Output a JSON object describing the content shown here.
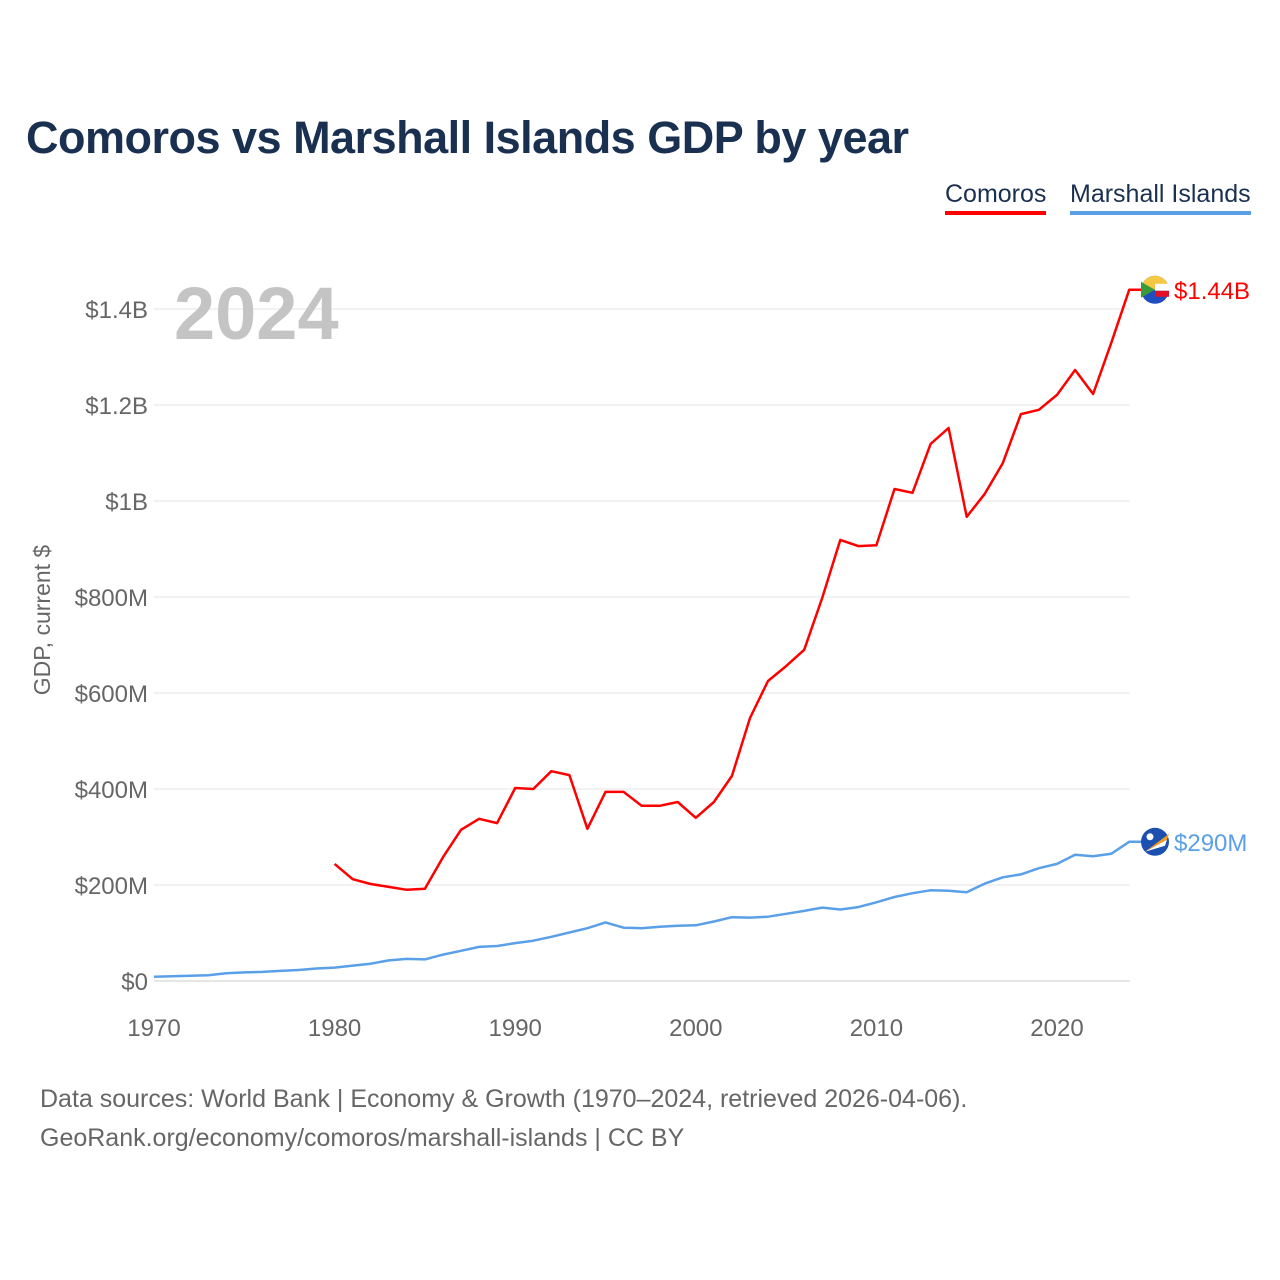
{
  "title": "Comoros vs Marshall Islands GDP by year",
  "legend": [
    "Comoros",
    "Marshall Islands"
  ],
  "footer": {
    "line1": "Data sources: World Bank | Economy & Growth (1970–2024, retrieved 2026-04-06).",
    "line2": "GeoRank.org/economy/comoros/marshall-islands | CC BY"
  },
  "chart_data": {
    "type": "line",
    "title": "Comoros vs Marshall Islands GDP by year",
    "year_label": "2024",
    "xlabel": "",
    "ylabel": "GDP, current $",
    "xlim": [
      1970,
      2024
    ],
    "ylim": [
      0,
      1500
    ],
    "units": "million USD",
    "grid": true,
    "legend_position": "top-right",
    "x_ticks": [
      1970,
      1980,
      1990,
      2000,
      2010,
      2020
    ],
    "y_ticks": [
      0,
      200,
      400,
      600,
      800,
      1000,
      1200,
      1400
    ],
    "y_tick_labels": [
      "$0",
      "$200M",
      "$400M",
      "$600M",
      "$800M",
      "$1B",
      "$1.2B",
      "$1.4B"
    ],
    "series": [
      {
        "name": "Comoros",
        "color": "#ff0000",
        "end_label": "$1.44B",
        "x": [
          1980,
          1981,
          1982,
          1983,
          1984,
          1985,
          1986,
          1987,
          1988,
          1989,
          1990,
          1991,
          1992,
          1993,
          1994,
          1995,
          1996,
          1997,
          1998,
          1999,
          2000,
          2001,
          2002,
          2003,
          2004,
          2005,
          2006,
          2007,
          2008,
          2009,
          2010,
          2011,
          2012,
          2013,
          2014,
          2015,
          2016,
          2017,
          2018,
          2019,
          2020,
          2021,
          2022,
          2023,
          2024
        ],
        "values": [
          244,
          212,
          202,
          196,
          190,
          192,
          258,
          315,
          338,
          329,
          402,
          400,
          437,
          429,
          317,
          394,
          394,
          365,
          365,
          373,
          340,
          373,
          427,
          548,
          625,
          656,
          690,
          798,
          919,
          906,
          908,
          1025,
          1017,
          1119,
          1152,
          967,
          1015,
          1079,
          1181,
          1190,
          1221,
          1273,
          1223,
          1329,
          1440
        ]
      },
      {
        "name": "Marshall Islands",
        "color": "#5aa0e8",
        "end_label": "$290M",
        "x": [
          1970,
          1971,
          1972,
          1973,
          1974,
          1975,
          1976,
          1977,
          1978,
          1979,
          1980,
          1981,
          1982,
          1983,
          1984,
          1985,
          1986,
          1987,
          1988,
          1989,
          1990,
          1991,
          1992,
          1993,
          1994,
          1995,
          1996,
          1997,
          1998,
          1999,
          2000,
          2001,
          2002,
          2003,
          2004,
          2005,
          2006,
          2007,
          2008,
          2009,
          2010,
          2011,
          2012,
          2013,
          2014,
          2015,
          2016,
          2017,
          2018,
          2019,
          2020,
          2021,
          2022,
          2023,
          2024
        ],
        "values": [
          9,
          10,
          11,
          12,
          16,
          18,
          19,
          21,
          23,
          26,
          28,
          32,
          36,
          43,
          46,
          45,
          55,
          63,
          71,
          73,
          79,
          84,
          92,
          101,
          110,
          122,
          111,
          110,
          113,
          115,
          116,
          124,
          133,
          132,
          134,
          140,
          146,
          153,
          149,
          154,
          164,
          175,
          183,
          189,
          188,
          185,
          203,
          216,
          222,
          235,
          244,
          263,
          260,
          265,
          290
        ]
      }
    ]
  }
}
